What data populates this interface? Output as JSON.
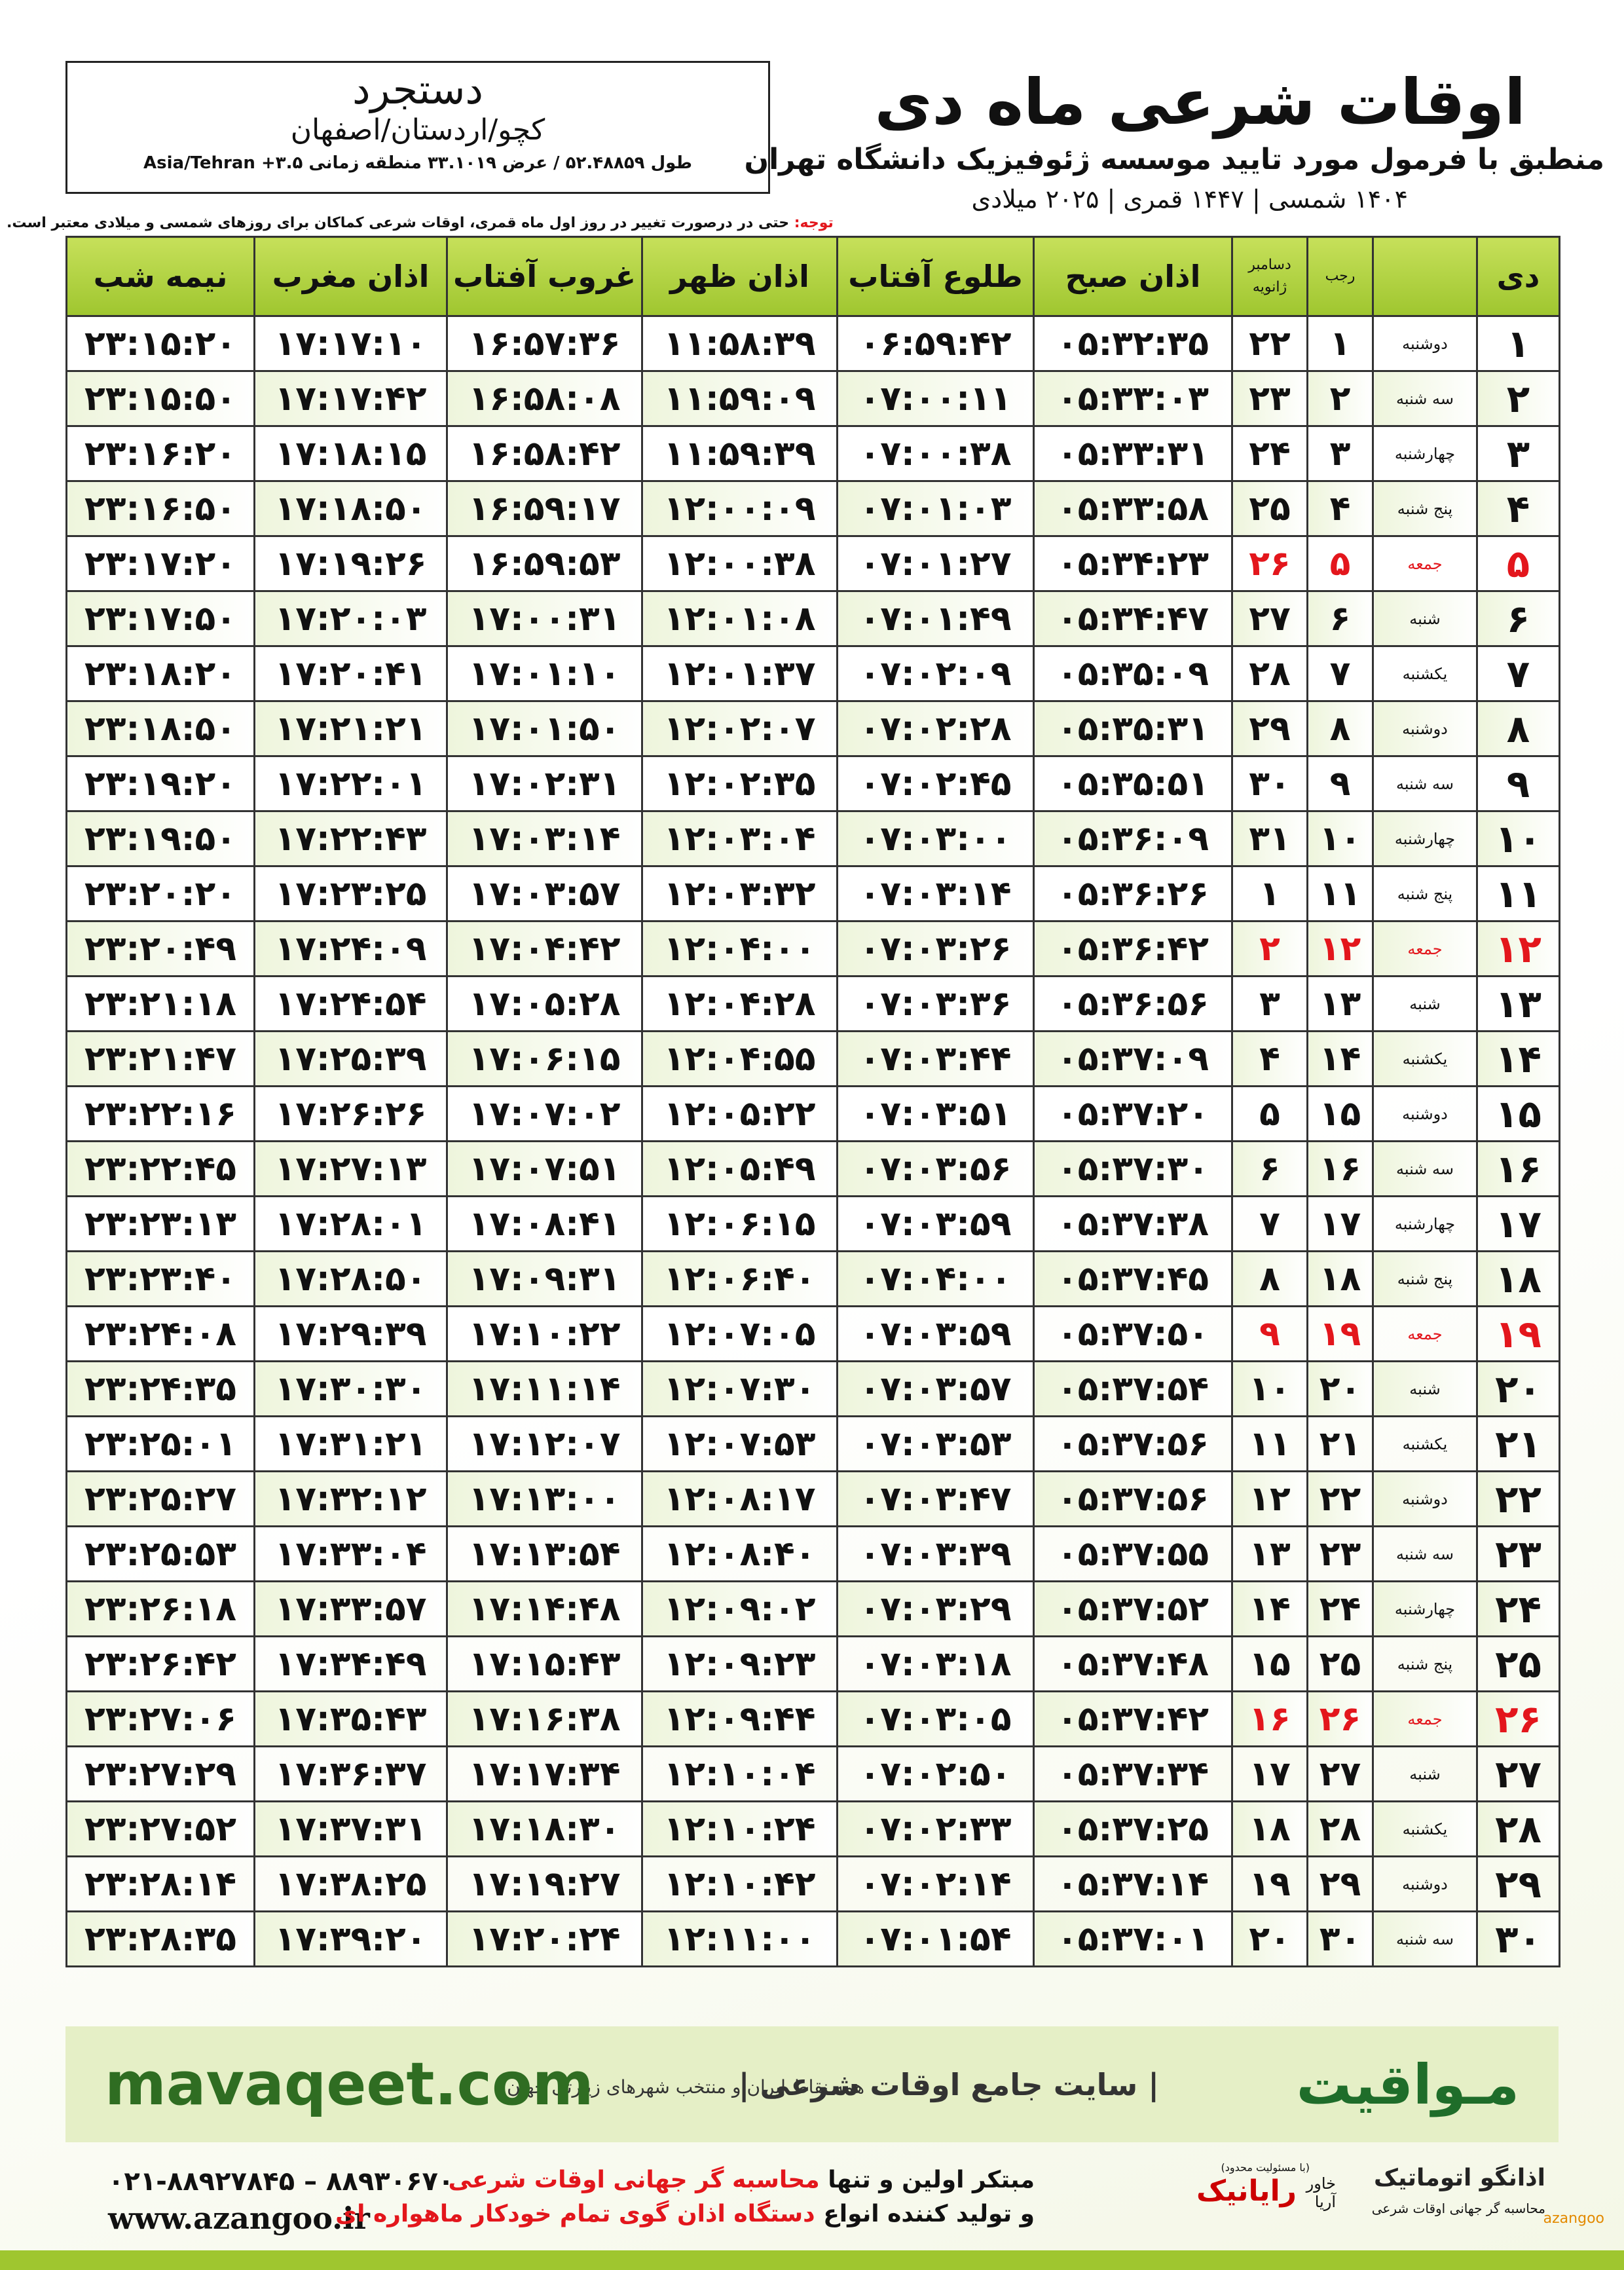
{
  "location": {
    "city": "دستجرد",
    "region": "کچو/اردستان/اصفهان",
    "coords": "طول ۵۲.۴۸۸۵۹ / عرض ۳۳.۱۰۱۹ منطقه زمانی ۳.۵+ Asia/Tehran"
  },
  "header": {
    "title": "اوقات شرعی ماه دی",
    "subtitle": "منطبق با فرمول مورد تایید موسسه ژئوفیزیک دانشگاه تهران",
    "dates": "۱۴۰۴ شمسی | ۱۴۴۷ قمری | ۲۰۲۵ میلادی"
  },
  "note": {
    "label": "توجه:",
    "text": "حتی در درصورت تغییر در روز اول ماه قمری، اوقات شرعی کماکان برای روزهای شمسی و میلادی معتبر است."
  },
  "table": {
    "month": "دی",
    "hijri_month": "رجب",
    "gregorian_months": [
      "دسامبر",
      "ژانویه"
    ],
    "times": [
      "اذان صبح",
      "طلوع آفتاب",
      "اذان ظهر",
      "غروب آفتاب",
      "اذان مغرب",
      "نیمه شب"
    ],
    "rows": [
      {
        "cells": [
          "۱",
          "دوشنبه",
          "۱",
          "۲۲",
          "۰۵:۳۲:۳۵",
          "۰۶:۵۹:۴۲",
          "۱۱:۵۸:۳۹",
          "۱۶:۵۷:۳۶",
          "۱۷:۱۷:۱۰",
          "۲۳:۱۵:۲۰"
        ]
      },
      {
        "cells": [
          "۲",
          "سه شنبه",
          "۲",
          "۲۳",
          "۰۵:۳۳:۰۳",
          "۰۷:۰۰:۱۱",
          "۱۱:۵۹:۰۹",
          "۱۶:۵۸:۰۸",
          "۱۷:۱۷:۴۲",
          "۲۳:۱۵:۵۰"
        ]
      },
      {
        "cells": [
          "۳",
          "چهارشنبه",
          "۳",
          "۲۴",
          "۰۵:۳۳:۳۱",
          "۰۷:۰۰:۳۸",
          "۱۱:۵۹:۳۹",
          "۱۶:۵۸:۴۲",
          "۱۷:۱۸:۱۵",
          "۲۳:۱۶:۲۰"
        ]
      },
      {
        "cells": [
          "۴",
          "پنج شنبه",
          "۴",
          "۲۵",
          "۰۵:۳۳:۵۸",
          "۰۷:۰۱:۰۳",
          "۱۲:۰۰:۰۹",
          "۱۶:۵۹:۱۷",
          "۱۷:۱۸:۵۰",
          "۲۳:۱۶:۵۰"
        ]
      },
      {
        "cells": [
          "۵",
          "جمعه",
          "۵",
          "۲۶",
          "۰۵:۳۴:۲۳",
          "۰۷:۰۱:۲۷",
          "۱۲:۰۰:۳۸",
          "۱۶:۵۹:۵۳",
          "۱۷:۱۹:۲۶",
          "۲۳:۱۷:۲۰"
        ],
        "color": "#e3161c"
      },
      {
        "cells": [
          "۶",
          "شنبه",
          "۶",
          "۲۷",
          "۰۵:۳۴:۴۷",
          "۰۷:۰۱:۴۹",
          "۱۲:۰۱:۰۸",
          "۱۷:۰۰:۳۱",
          "۱۷:۲۰:۰۳",
          "۲۳:۱۷:۵۰"
        ]
      },
      {
        "cells": [
          "۷",
          "یکشنبه",
          "۷",
          "۲۸",
          "۰۵:۳۵:۰۹",
          "۰۷:۰۲:۰۹",
          "۱۲:۰۱:۳۷",
          "۱۷:۰۱:۱۰",
          "۱۷:۲۰:۴۱",
          "۲۳:۱۸:۲۰"
        ]
      },
      {
        "cells": [
          "۸",
          "دوشنبه",
          "۸",
          "۲۹",
          "۰۵:۳۵:۳۱",
          "۰۷:۰۲:۲۸",
          "۱۲:۰۲:۰۷",
          "۱۷:۰۱:۵۰",
          "۱۷:۲۱:۲۱",
          "۲۳:۱۸:۵۰"
        ]
      },
      {
        "cells": [
          "۹",
          "سه شنبه",
          "۹",
          "۳۰",
          "۰۵:۳۵:۵۱",
          "۰۷:۰۲:۴۵",
          "۱۲:۰۲:۳۵",
          "۱۷:۰۲:۳۱",
          "۱۷:۲۲:۰۱",
          "۲۳:۱۹:۲۰"
        ]
      },
      {
        "cells": [
          "۱۰",
          "چهارشنبه",
          "۱۰",
          "۳۱",
          "۰۵:۳۶:۰۹",
          "۰۷:۰۳:۰۰",
          "۱۲:۰۳:۰۴",
          "۱۷:۰۳:۱۴",
          "۱۷:۲۲:۴۳",
          "۲۳:۱۹:۵۰"
        ]
      },
      {
        "cells": [
          "۱۱",
          "پنج شنبه",
          "۱۱",
          "۱",
          "۰۵:۳۶:۲۶",
          "۰۷:۰۳:۱۴",
          "۱۲:۰۳:۳۲",
          "۱۷:۰۳:۵۷",
          "۱۷:۲۳:۲۵",
          "۲۳:۲۰:۲۰"
        ]
      },
      {
        "cells": [
          "۱۲",
          "جمعه",
          "۱۲",
          "۲",
          "۰۵:۳۶:۴۲",
          "۰۷:۰۳:۲۶",
          "۱۲:۰۴:۰۰",
          "۱۷:۰۴:۴۲",
          "۱۷:۲۴:۰۹",
          "۲۳:۲۰:۴۹"
        ],
        "color": "#e3161c"
      },
      {
        "cells": [
          "۱۳",
          "شنبه",
          "۱۳",
          "۳",
          "۰۵:۳۶:۵۶",
          "۰۷:۰۳:۳۶",
          "۱۲:۰۴:۲۸",
          "۱۷:۰۵:۲۸",
          "۱۷:۲۴:۵۴",
          "۲۳:۲۱:۱۸"
        ]
      },
      {
        "cells": [
          "۱۴",
          "یکشنبه",
          "۱۴",
          "۴",
          "۰۵:۳۷:۰۹",
          "۰۷:۰۳:۴۴",
          "۱۲:۰۴:۵۵",
          "۱۷:۰۶:۱۵",
          "۱۷:۲۵:۳۹",
          "۲۳:۲۱:۴۷"
        ]
      },
      {
        "cells": [
          "۱۵",
          "دوشنبه",
          "۱۵",
          "۵",
          "۰۵:۳۷:۲۰",
          "۰۷:۰۳:۵۱",
          "۱۲:۰۵:۲۲",
          "۱۷:۰۷:۰۲",
          "۱۷:۲۶:۲۶",
          "۲۳:۲۲:۱۶"
        ]
      },
      {
        "cells": [
          "۱۶",
          "سه شنبه",
          "۱۶",
          "۶",
          "۰۵:۳۷:۳۰",
          "۰۷:۰۳:۵۶",
          "۱۲:۰۵:۴۹",
          "۱۷:۰۷:۵۱",
          "۱۷:۲۷:۱۳",
          "۲۳:۲۲:۴۵"
        ]
      },
      {
        "cells": [
          "۱۷",
          "چهارشنبه",
          "۱۷",
          "۷",
          "۰۵:۳۷:۳۸",
          "۰۷:۰۳:۵۹",
          "۱۲:۰۶:۱۵",
          "۱۷:۰۸:۴۱",
          "۱۷:۲۸:۰۱",
          "۲۳:۲۳:۱۳"
        ]
      },
      {
        "cells": [
          "۱۸",
          "پنج شنبه",
          "۱۸",
          "۸",
          "۰۵:۳۷:۴۵",
          "۰۷:۰۴:۰۰",
          "۱۲:۰۶:۴۰",
          "۱۷:۰۹:۳۱",
          "۱۷:۲۸:۵۰",
          "۲۳:۲۳:۴۰"
        ]
      },
      {
        "cells": [
          "۱۹",
          "جمعه",
          "۱۹",
          "۹",
          "۰۵:۳۷:۵۰",
          "۰۷:۰۳:۵۹",
          "۱۲:۰۷:۰۵",
          "۱۷:۱۰:۲۲",
          "۱۷:۲۹:۳۹",
          "۲۳:۲۴:۰۸"
        ],
        "color": "#e3161c"
      },
      {
        "cells": [
          "۲۰",
          "شنبه",
          "۲۰",
          "۱۰",
          "۰۵:۳۷:۵۴",
          "۰۷:۰۳:۵۷",
          "۱۲:۰۷:۳۰",
          "۱۷:۱۱:۱۴",
          "۱۷:۳۰:۳۰",
          "۲۳:۲۴:۳۵"
        ]
      },
      {
        "cells": [
          "۲۱",
          "یکشنبه",
          "۲۱",
          "۱۱",
          "۰۵:۳۷:۵۶",
          "۰۷:۰۳:۵۳",
          "۱۲:۰۷:۵۳",
          "۱۷:۱۲:۰۷",
          "۱۷:۳۱:۲۱",
          "۲۳:۲۵:۰۱"
        ]
      },
      {
        "cells": [
          "۲۲",
          "دوشنبه",
          "۲۲",
          "۱۲",
          "۰۵:۳۷:۵۶",
          "۰۷:۰۳:۴۷",
          "۱۲:۰۸:۱۷",
          "۱۷:۱۳:۰۰",
          "۱۷:۳۲:۱۲",
          "۲۳:۲۵:۲۷"
        ]
      },
      {
        "cells": [
          "۲۳",
          "سه شنبه",
          "۲۳",
          "۱۳",
          "۰۵:۳۷:۵۵",
          "۰۷:۰۳:۳۹",
          "۱۲:۰۸:۴۰",
          "۱۷:۱۳:۵۴",
          "۱۷:۳۳:۰۴",
          "۲۳:۲۵:۵۳"
        ]
      },
      {
        "cells": [
          "۲۴",
          "چهارشنبه",
          "۲۴",
          "۱۴",
          "۰۵:۳۷:۵۲",
          "۰۷:۰۳:۲۹",
          "۱۲:۰۹:۰۲",
          "۱۷:۱۴:۴۸",
          "۱۷:۳۳:۵۷",
          "۲۳:۲۶:۱۸"
        ]
      },
      {
        "cells": [
          "۲۵",
          "پنج شنبه",
          "۲۵",
          "۱۵",
          "۰۵:۳۷:۴۸",
          "۰۷:۰۳:۱۸",
          "۱۲:۰۹:۲۳",
          "۱۷:۱۵:۴۳",
          "۱۷:۳۴:۴۹",
          "۲۳:۲۶:۴۲"
        ]
      },
      {
        "cells": [
          "۲۶",
          "جمعه",
          "۲۶",
          "۱۶",
          "۰۵:۳۷:۴۲",
          "۰۷:۰۳:۰۵",
          "۱۲:۰۹:۴۴",
          "۱۷:۱۶:۳۸",
          "۱۷:۳۵:۴۳",
          "۲۳:۲۷:۰۶"
        ],
        "color": "#e3161c"
      },
      {
        "cells": [
          "۲۷",
          "شنبه",
          "۲۷",
          "۱۷",
          "۰۵:۳۷:۳۴",
          "۰۷:۰۲:۵۰",
          "۱۲:۱۰:۰۴",
          "۱۷:۱۷:۳۴",
          "۱۷:۳۶:۳۷",
          "۲۳:۲۷:۲۹"
        ]
      },
      {
        "cells": [
          "۲۸",
          "یکشنبه",
          "۲۸",
          "۱۸",
          "۰۵:۳۷:۲۵",
          "۰۷:۰۲:۳۳",
          "۱۲:۱۰:۲۴",
          "۱۷:۱۸:۳۰",
          "۱۷:۳۷:۳۱",
          "۲۳:۲۷:۵۲"
        ]
      },
      {
        "cells": [
          "۲۹",
          "دوشنبه",
          "۲۹",
          "۱۹",
          "۰۵:۳۷:۱۴",
          "۰۷:۰۲:۱۴",
          "۱۲:۱۰:۴۲",
          "۱۷:۱۹:۲۷",
          "۱۷:۳۸:۲۵",
          "۲۳:۲۸:۱۴"
        ]
      },
      {
        "cells": [
          "۳۰",
          "سه شنبه",
          "۳۰",
          "۲۰",
          "۰۵:۳۷:۰۱",
          "۰۷:۰۱:۵۴",
          "۱۲:۱۱:۰۰",
          "۱۷:۲۰:۲۴",
          "۱۷:۳۹:۲۰",
          "۲۳:۲۸:۳۵"
        ]
      }
    ]
  },
  "banner": {
    "brand": "مـواقیت",
    "slogan": "| سایت جامع اوقات شرعی |",
    "coverage": "همه نقاط ایران و منتخب شهرهای زیارتی جهان",
    "website": "mavaqeet.com"
  },
  "footer": {
    "phone": "۰۲۱-۸۸۹۲۷۸۴۵ – ۸۸۹۳۰۶۷۰",
    "website": "www.azangoo.ir",
    "line1": [
      "مبتکر اولین و تنها ",
      "محاسبه گر جهانی اوقات شرعی"
    ],
    "line2": [
      "و تولید کننده انواع ",
      "دستگاه اذان گوی تمام خودکار ماهواره ای",
      ""
    ],
    "logos": {
      "azangoo": "اذانگو اتوماتیک",
      "azangoo_tagline": "محاسبه گر جهانی اوقات شرعی",
      "azangoo_latin": "azangoo",
      "rayanik": "رایانیک",
      "khavar": "خاور آریا",
      "limited": "(با مسئولیت محدود)"
    }
  }
}
